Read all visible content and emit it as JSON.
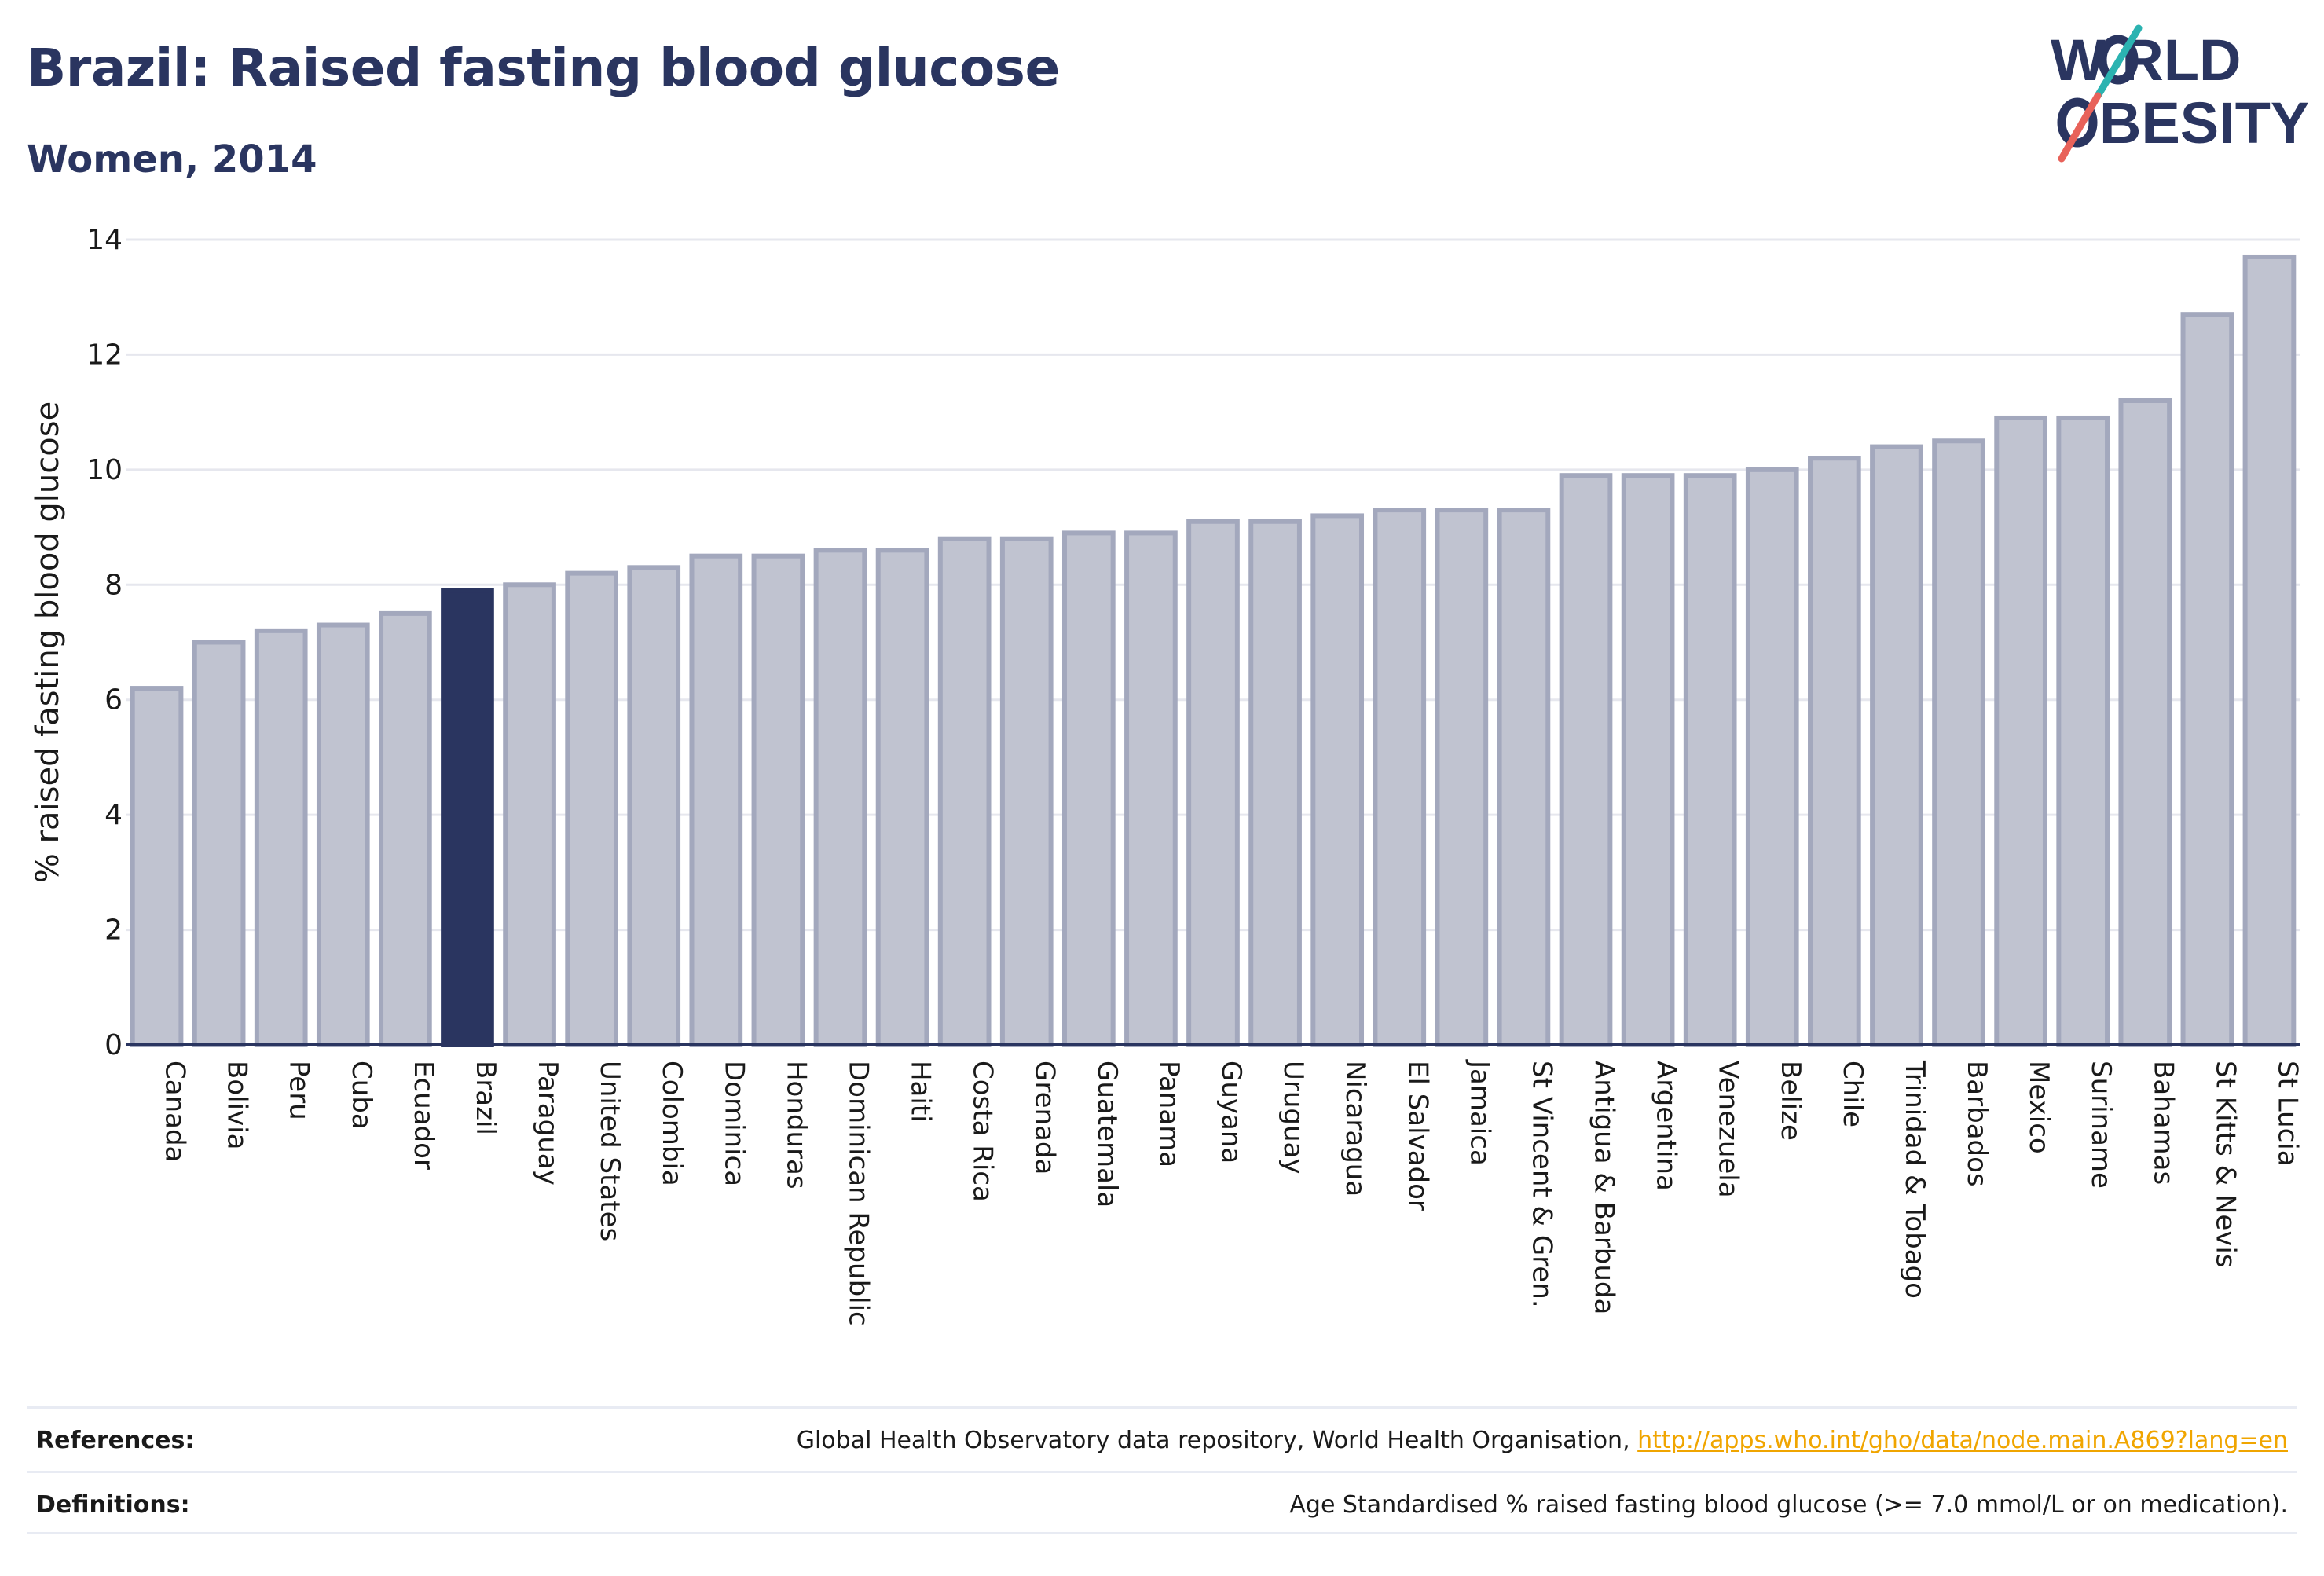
{
  "header": {
    "title": "Brazil: Raised fasting blood glucose",
    "subtitle": "Women, 2014"
  },
  "logo": {
    "line1": "W RLD",
    "line2": "BESITY",
    "colors": {
      "text": "#2a3560",
      "slash_top": "#2bb3b1",
      "slash_bottom": "#e8625a"
    }
  },
  "colors": {
    "bar_default": "#c0c3d0",
    "bar_default_stroke": "#a3a8bd",
    "bar_highlight": "#2a3560",
    "grid": "#e6e7ee",
    "axis": "#2a3560"
  },
  "chart_data": {
    "type": "bar",
    "title": "Brazil: Raised fasting blood glucose",
    "subtitle": "Women, 2014",
    "xlabel": "",
    "ylabel": "% raised fasting blood glucose",
    "ylim": [
      0,
      14
    ],
    "yticks": [
      0,
      2,
      4,
      6,
      8,
      10,
      12,
      14
    ],
    "grid": true,
    "highlight": "Brazil",
    "categories": [
      "Canada",
      "Bolivia",
      "Peru",
      "Cuba",
      "Ecuador",
      "Brazil",
      "Paraguay",
      "United States",
      "Colombia",
      "Dominica",
      "Honduras",
      "Dominican Republic",
      "Haiti",
      "Costa Rica",
      "Grenada",
      "Guatemala",
      "Panama",
      "Guyana",
      "Uruguay",
      "Nicaragua",
      "El Salvador",
      "Jamaica",
      "St Vincent & Gren.",
      "Antigua & Barbuda",
      "Argentina",
      "Venezuela",
      "Belize",
      "Chile",
      "Trinidad & Tobago",
      "Barbados",
      "Mexico",
      "Suriname",
      "Bahamas",
      "St Kitts & Nevis",
      "St Lucia"
    ],
    "values": [
      6.2,
      7.0,
      7.2,
      7.3,
      7.5,
      7.9,
      8.0,
      8.2,
      8.3,
      8.5,
      8.5,
      8.6,
      8.6,
      8.8,
      8.8,
      8.9,
      8.9,
      9.1,
      9.1,
      9.2,
      9.3,
      9.3,
      9.3,
      9.9,
      9.9,
      9.9,
      10.0,
      10.2,
      10.4,
      10.5,
      10.9,
      10.9,
      11.2,
      12.7,
      13.7
    ]
  },
  "footer": {
    "references_label": "References:",
    "references_text": "Global Health Observatory data repository, World Health Organisation, ",
    "references_link": "http://apps.who.int/gho/data/node.main.A869?lang=en",
    "definitions_label": "Definitions:",
    "definitions_text": "Age Standardised % raised fasting blood glucose (>= 7.0 mmol/L or on medication)."
  }
}
